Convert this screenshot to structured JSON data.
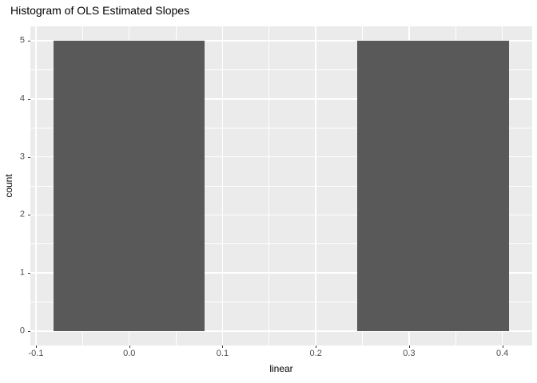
{
  "chart_data": {
    "type": "bar",
    "subtype": "histogram",
    "title": "Histogram of OLS Estimated Slopes",
    "xlabel": "linear",
    "ylabel": "count",
    "bars": [
      {
        "x_from": -0.081,
        "x_to": 0.081,
        "count": 5
      },
      {
        "x_from": 0.244,
        "x_to": 0.407,
        "count": 5
      }
    ],
    "x_tick_values": [
      -0.1,
      0.0,
      0.1,
      0.2,
      0.3,
      0.4
    ],
    "x_tick_labels": [
      "-0.1",
      "0.0",
      "0.1",
      "0.2",
      "0.3",
      "0.4"
    ],
    "y_tick_values": [
      0,
      1,
      2,
      3,
      4,
      5
    ],
    "y_tick_labels": [
      "0",
      "1",
      "2",
      "3",
      "4",
      "5"
    ],
    "x_minor_gridlines": [
      -0.05,
      0.05,
      0.15,
      0.25,
      0.35
    ],
    "y_minor_gridlines": [
      0.5,
      1.5,
      2.5,
      3.5,
      4.5
    ],
    "xlim": [
      -0.106,
      0.432
    ],
    "ylim": [
      -0.25,
      5.25
    ],
    "grid": true,
    "legend": "none",
    "colors": {
      "bar_fill": "#595959",
      "panel_background": "#ebebeb",
      "gridline": "#ffffff",
      "tick_label": "#4d4d4d",
      "tick_mark": "#333333",
      "title": "#000000",
      "axis_title": "#000000",
      "figure_background": "#ffffff"
    }
  }
}
